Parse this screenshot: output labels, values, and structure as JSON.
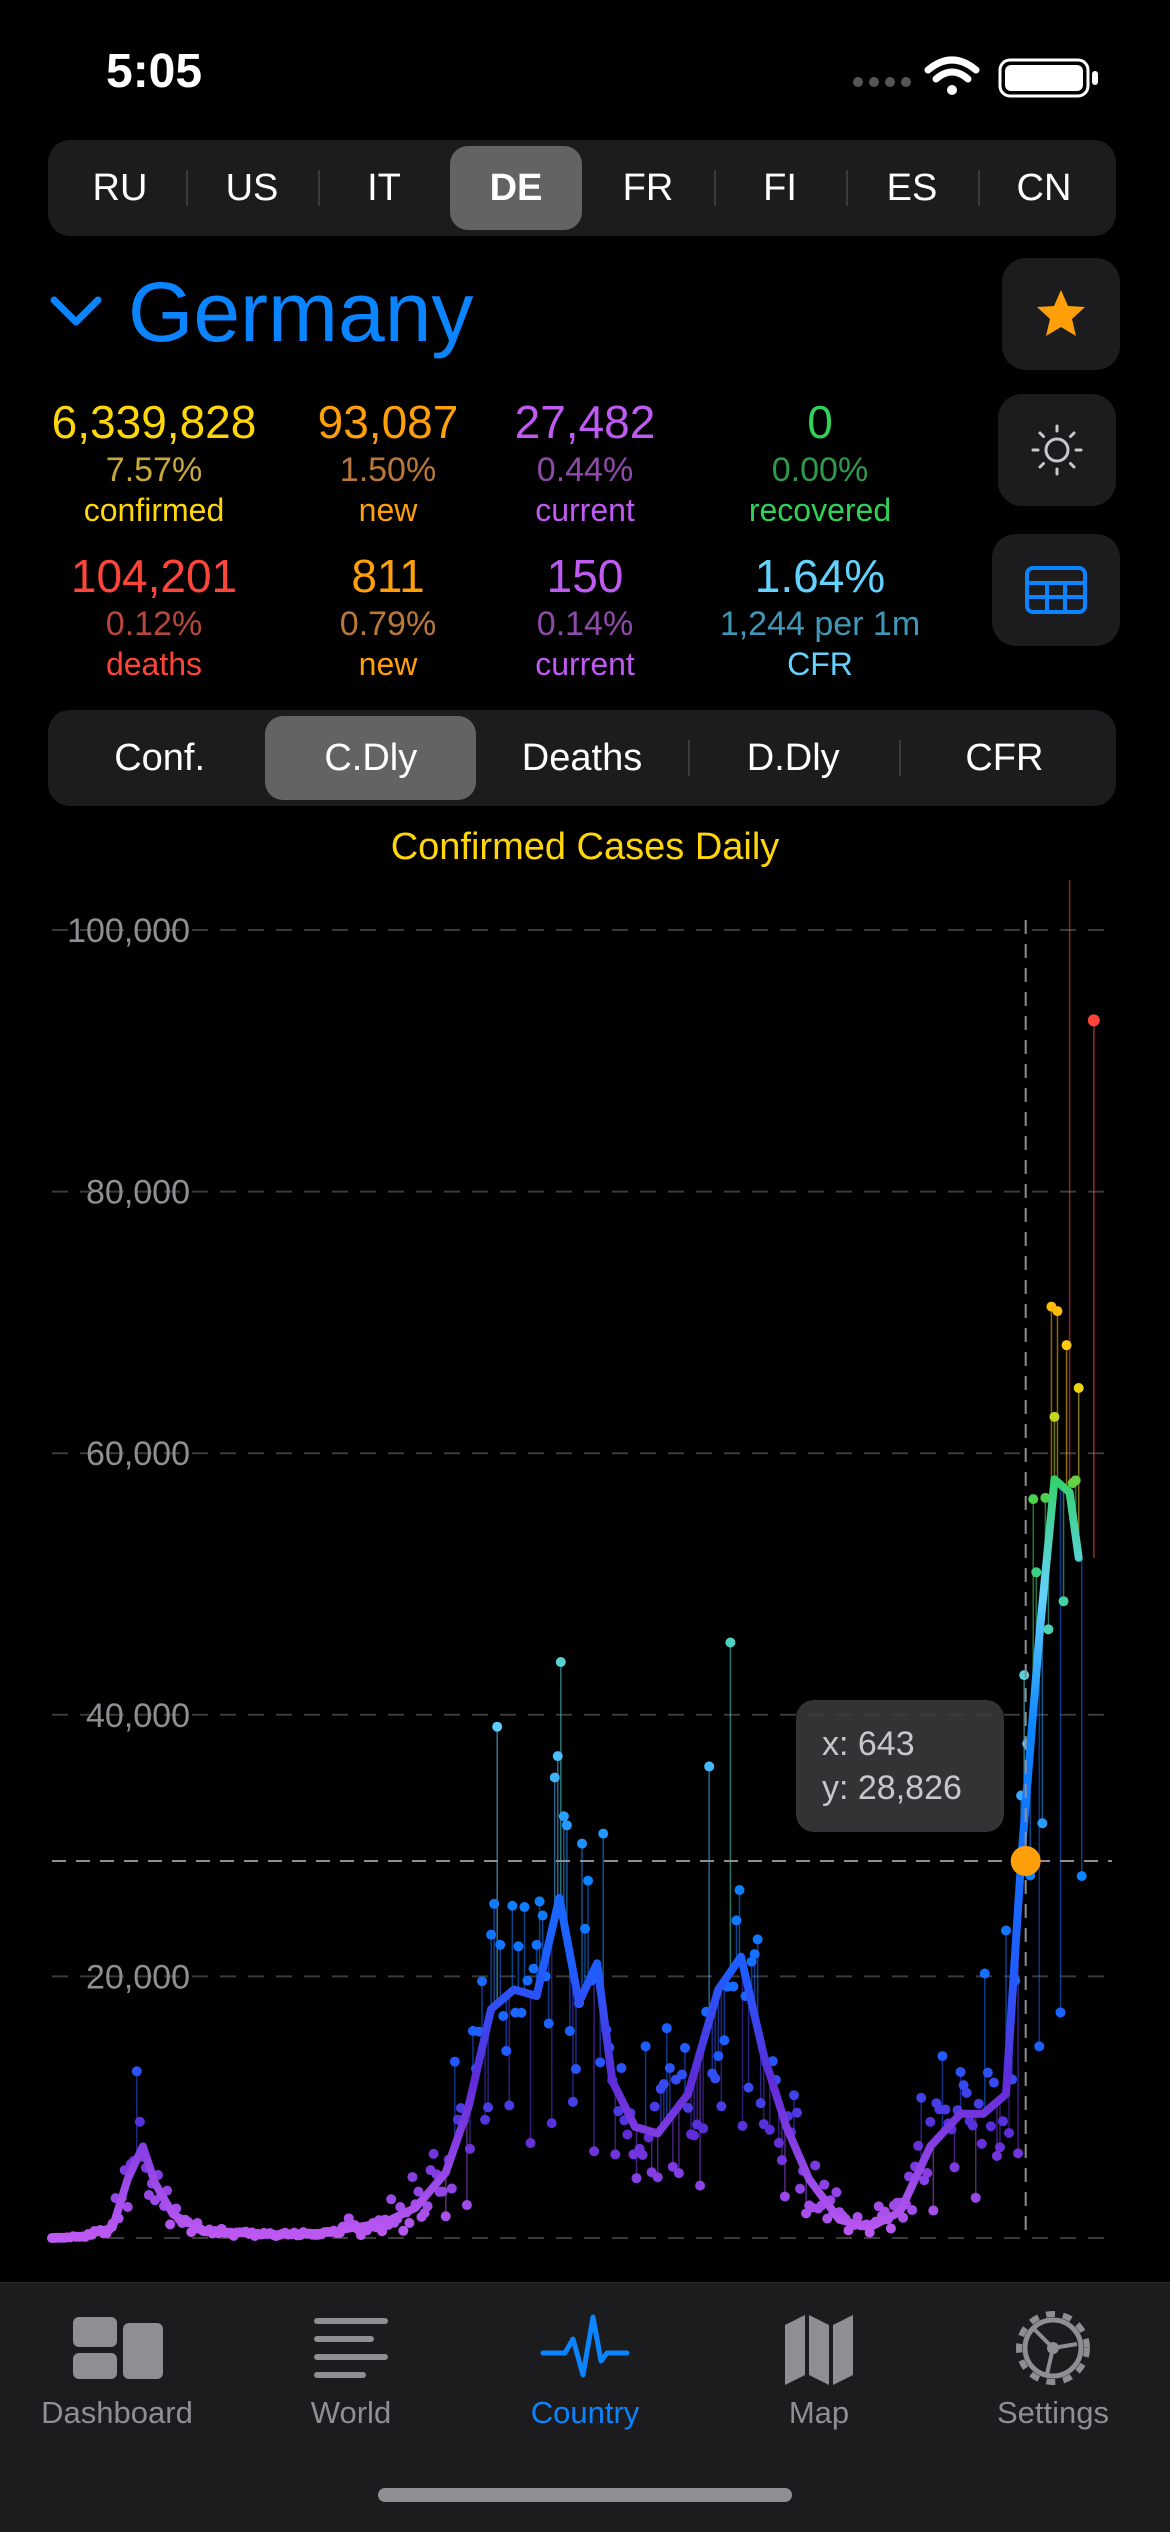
{
  "status": {
    "time": "5:05"
  },
  "countries": [
    {
      "code": "RU",
      "selected": false
    },
    {
      "code": "US",
      "selected": false
    },
    {
      "code": "IT",
      "selected": false
    },
    {
      "code": "DE",
      "selected": true
    },
    {
      "code": "FR",
      "selected": false
    },
    {
      "code": "FI",
      "selected": false
    },
    {
      "code": "ES",
      "selected": false
    },
    {
      "code": "CN",
      "selected": false
    }
  ],
  "header": {
    "country_name": "Germany"
  },
  "stats": {
    "confirmed": {
      "value": "6,339,828",
      "percent": "7.57%",
      "label": "confirmed",
      "color": "#ffd60a",
      "pcolor": "#c9a83a"
    },
    "new_confirmed": {
      "value": "93,087",
      "percent": "1.50%",
      "label": "new",
      "color": "#ff9f0a",
      "pcolor": "#b9773a"
    },
    "current": {
      "value": "27,482",
      "percent": "0.44%",
      "label": "current",
      "color": "#bf5af2",
      "pcolor": "#8e4aa8"
    },
    "recovered": {
      "value": "0",
      "percent": "0.00%",
      "label": "recovered",
      "color": "#30d158",
      "pcolor": "#2f9a4c"
    },
    "deaths": {
      "value": "104,201",
      "percent": "0.12%",
      "label": "deaths",
      "color": "#ff453a",
      "pcolor": "#b7463c"
    },
    "new_deaths": {
      "value": "811",
      "percent": "0.79%",
      "label": "new",
      "color": "#ff9f0a",
      "pcolor": "#b9773a"
    },
    "current_deaths": {
      "value": "150",
      "percent": "0.14%",
      "label": "current",
      "color": "#bf5af2",
      "pcolor": "#8e4aa8"
    },
    "cfr": {
      "value": "1.64%",
      "percent": "1,244 per 1m",
      "label": "CFR",
      "color": "#64d2ff",
      "pcolor": "#3f98b8"
    }
  },
  "chart_tabs": [
    {
      "label": "Conf.",
      "selected": false
    },
    {
      "label": "C.Dly",
      "selected": true
    },
    {
      "label": "Deaths",
      "selected": false
    },
    {
      "label": "D.Dly",
      "selected": false
    },
    {
      "label": "CFR",
      "selected": false
    }
  ],
  "chart_data": {
    "type": "scatter",
    "title": "Confirmed Cases Daily",
    "xlabel": "",
    "ylabel": "",
    "xlim": [
      0,
      700
    ],
    "ylim": [
      0,
      100000
    ],
    "yticks": [
      "100,000",
      "80,000",
      "60,000",
      "40,000",
      "20,000"
    ],
    "ytick_values": [
      100000,
      80000,
      60000,
      40000,
      20000
    ],
    "grid": true,
    "trend_points": [
      [
        0,
        0
      ],
      [
        20,
        100
      ],
      [
        40,
        800
      ],
      [
        50,
        4500
      ],
      [
        60,
        7000
      ],
      [
        68,
        4200
      ],
      [
        80,
        1800
      ],
      [
        100,
        600
      ],
      [
        140,
        250
      ],
      [
        180,
        400
      ],
      [
        220,
        1200
      ],
      [
        240,
        2300
      ],
      [
        260,
        5000
      ],
      [
        275,
        10000
      ],
      [
        290,
        17500
      ],
      [
        305,
        19000
      ],
      [
        320,
        18500
      ],
      [
        335,
        26000
      ],
      [
        348,
        18000
      ],
      [
        360,
        21000
      ],
      [
        370,
        12000
      ],
      [
        385,
        8500
      ],
      [
        400,
        8000
      ],
      [
        420,
        11000
      ],
      [
        440,
        19000
      ],
      [
        455,
        21500
      ],
      [
        470,
        14000
      ],
      [
        485,
        8500
      ],
      [
        500,
        4500
      ],
      [
        520,
        1400
      ],
      [
        540,
        800
      ],
      [
        560,
        2000
      ],
      [
        580,
        7000
      ],
      [
        600,
        9500
      ],
      [
        615,
        9500
      ],
      [
        630,
        11000
      ],
      [
        640,
        28826
      ],
      [
        652,
        46000
      ],
      [
        662,
        58000
      ],
      [
        672,
        57000
      ],
      [
        678,
        52000
      ]
    ],
    "highlight": {
      "x": 643,
      "y": 28826,
      "label_x": "x: 643",
      "label_y": "y: 28,826"
    },
    "peak": {
      "x": 688,
      "y": 93087
    }
  },
  "tab_bar": [
    {
      "label": "Dashboard",
      "icon": "dashboard-icon",
      "active": false
    },
    {
      "label": "World",
      "icon": "list-icon",
      "active": false
    },
    {
      "label": "Country",
      "icon": "pulse-icon",
      "active": true
    },
    {
      "label": "Map",
      "icon": "map-icon",
      "active": false
    },
    {
      "label": "Settings",
      "icon": "gear-icon",
      "active": false
    }
  ]
}
